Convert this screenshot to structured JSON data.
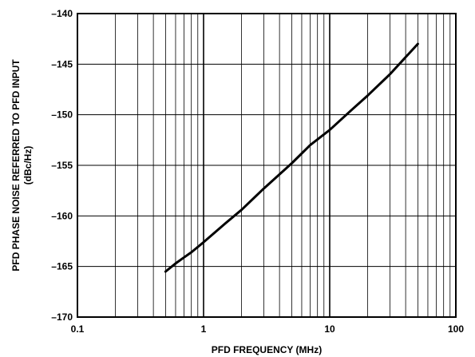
{
  "chart_data": {
    "type": "line",
    "xlabel": "PFD FREQUENCY (MHz)",
    "ylabel": [
      "PFD PHASE NOISE REFERRED TO PFD INPUT",
      "(dBc/Hz)"
    ],
    "x_scale": "log",
    "xlim": [
      0.1,
      100
    ],
    "ylim": [
      -170,
      -140
    ],
    "grid": true,
    "x_ticks": [
      {
        "value": 0.1,
        "label": "0.1"
      },
      {
        "value": 1,
        "label": "1"
      },
      {
        "value": 10,
        "label": "10"
      },
      {
        "value": 100,
        "label": "100"
      }
    ],
    "y_ticks": [
      {
        "value": -140,
        "label": "–140"
      },
      {
        "value": -145,
        "label": "–145"
      },
      {
        "value": -150,
        "label": "–150"
      },
      {
        "value": -155,
        "label": "–155"
      },
      {
        "value": -160,
        "label": "–160"
      },
      {
        "value": -165,
        "label": "–165"
      },
      {
        "value": -170,
        "label": "–170"
      }
    ],
    "series": [
      {
        "x": [
          0.5,
          0.6,
          0.7,
          0.8,
          1,
          1.5,
          2,
          3,
          5,
          7,
          10,
          15,
          20,
          30,
          50
        ],
        "y": [
          -165.5,
          -164.7,
          -164.1,
          -163.6,
          -162.6,
          -160.7,
          -159.4,
          -157.3,
          -154.8,
          -153.0,
          -151.5,
          -149.5,
          -148.1,
          -146.0,
          -143.0
        ]
      }
    ]
  }
}
